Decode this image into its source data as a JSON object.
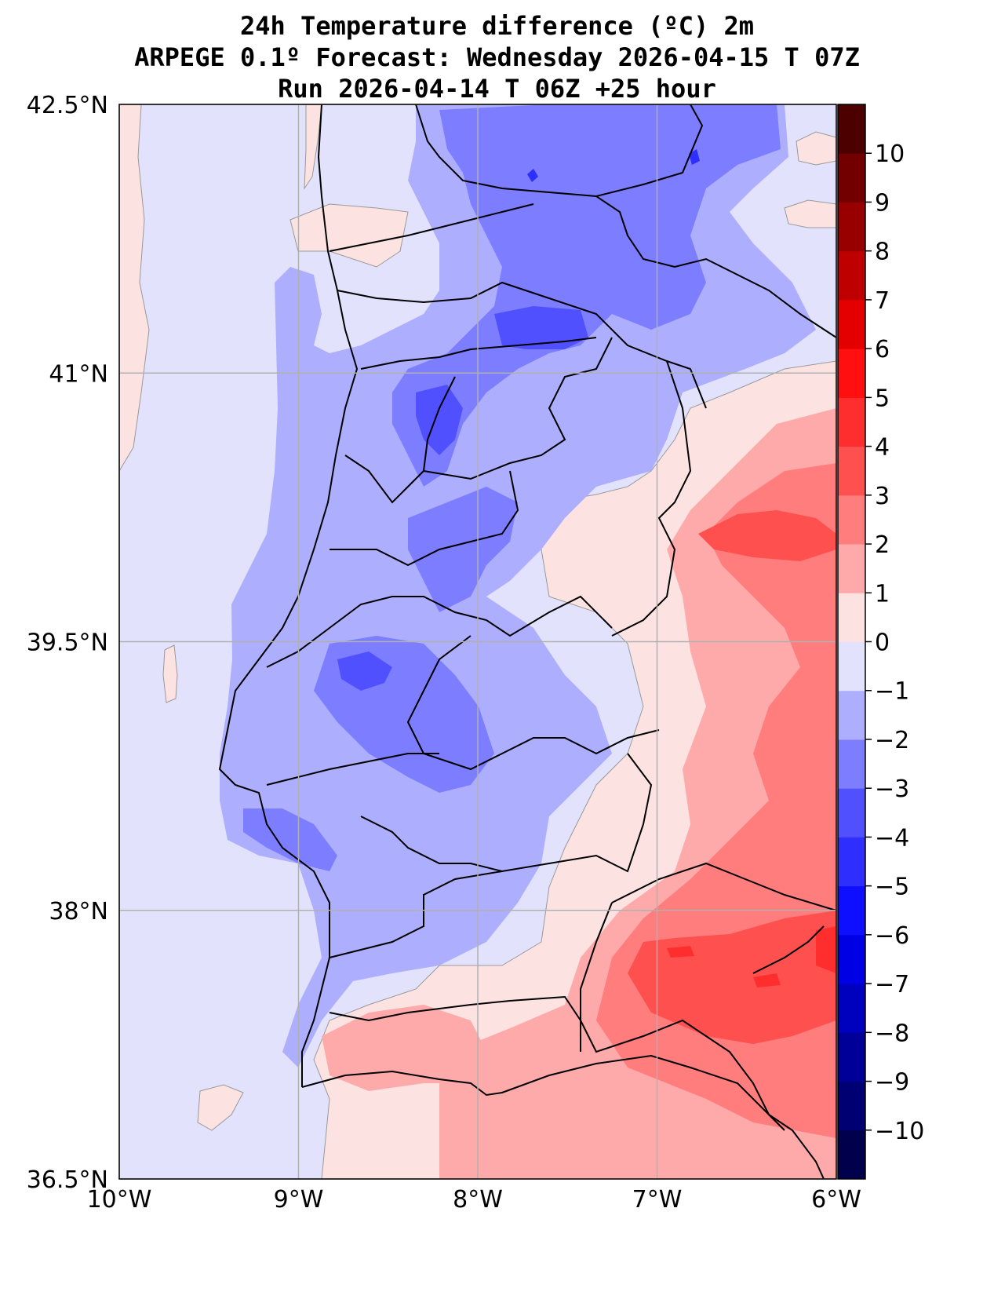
{
  "title": {
    "line1": "24h Temperature difference (ºC) 2m",
    "line2": "ARPEGE 0.1º Forecast: Wednesday 2026-04-15 T 07Z",
    "line3": "Run 2026-04-14 T 06Z +25 hour"
  },
  "axes": {
    "lon_min": -10,
    "lon_max": -6,
    "lat_min": 36.5,
    "lat_max": 42.5,
    "x_ticks": [
      {
        "value": -10,
        "label": "10°W"
      },
      {
        "value": -9,
        "label": "9°W"
      },
      {
        "value": -8,
        "label": "8°W"
      },
      {
        "value": -7,
        "label": "7°W"
      },
      {
        "value": -6,
        "label": "6°W"
      }
    ],
    "y_ticks": [
      {
        "value": 42.5,
        "label": "42.5°N"
      },
      {
        "value": 41,
        "label": "41°N"
      },
      {
        "value": 39.5,
        "label": "39.5°N"
      },
      {
        "value": 38,
        "label": "38°N"
      },
      {
        "value": 36.5,
        "label": "36.5°N"
      }
    ]
  },
  "colorbar": {
    "min": -11,
    "max": 11,
    "labels": [
      "10",
      "9",
      "8",
      "7",
      "6",
      "5",
      "4",
      "3",
      "2",
      "1",
      "0",
      "−1",
      "−2",
      "−3",
      "−4",
      "−5",
      "−6",
      "−7",
      "−8",
      "−9",
      "−10"
    ],
    "label_values": [
      10,
      9,
      8,
      7,
      6,
      5,
      4,
      3,
      2,
      1,
      0,
      -1,
      -2,
      -3,
      -4,
      -5,
      -6,
      -7,
      -8,
      -9,
      -10
    ],
    "colors": {
      "-11": "#00004d",
      "-10": "#000072",
      "-9": "#000098",
      "-8": "#0000bf",
      "-7": "#0000e5",
      "-6": "#0f0fff",
      "-5": "#2e2eff",
      "-4": "#5050ff",
      "-3": "#7d7dff",
      "-2": "#aeaeff",
      "-1": "#e2e2fd",
      "0": "#fde2e2",
      "1": "#ffaaaa",
      "2": "#ff7d7d",
      "3": "#ff5050",
      "4": "#ff2e2e",
      "5": "#ff0f0f",
      "6": "#e50000",
      "7": "#bf0000",
      "8": "#980000",
      "9": "#720000",
      "10": "#4d0000"
    }
  }
}
